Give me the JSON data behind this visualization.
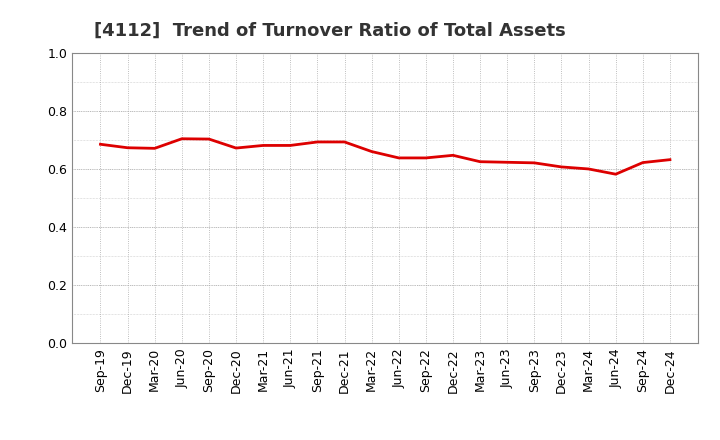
{
  "title": "[4112]  Trend of Turnover Ratio of Total Assets",
  "x_labels": [
    "Sep-19",
    "Dec-19",
    "Mar-20",
    "Jun-20",
    "Sep-20",
    "Dec-20",
    "Mar-21",
    "Jun-21",
    "Sep-21",
    "Dec-21",
    "Mar-22",
    "Jun-22",
    "Sep-22",
    "Dec-22",
    "Mar-23",
    "Jun-23",
    "Sep-23",
    "Dec-23",
    "Mar-24",
    "Jun-24",
    "Sep-24",
    "Dec-24"
  ],
  "values": [
    0.685,
    0.673,
    0.671,
    0.704,
    0.703,
    0.672,
    0.681,
    0.681,
    0.693,
    0.693,
    0.66,
    0.638,
    0.638,
    0.647,
    0.625,
    0.623,
    0.621,
    0.607,
    0.6,
    0.582,
    0.622,
    0.632
  ],
  "line_color": "#dd0000",
  "line_width": 2.0,
  "ylim": [
    0.0,
    1.0
  ],
  "yticks": [
    0.0,
    0.2,
    0.4,
    0.6,
    0.8,
    1.0
  ],
  "background_color": "#ffffff",
  "grid_color": "#aaaaaa",
  "title_fontsize": 13,
  "tick_fontsize": 9,
  "title_color": "#333333"
}
